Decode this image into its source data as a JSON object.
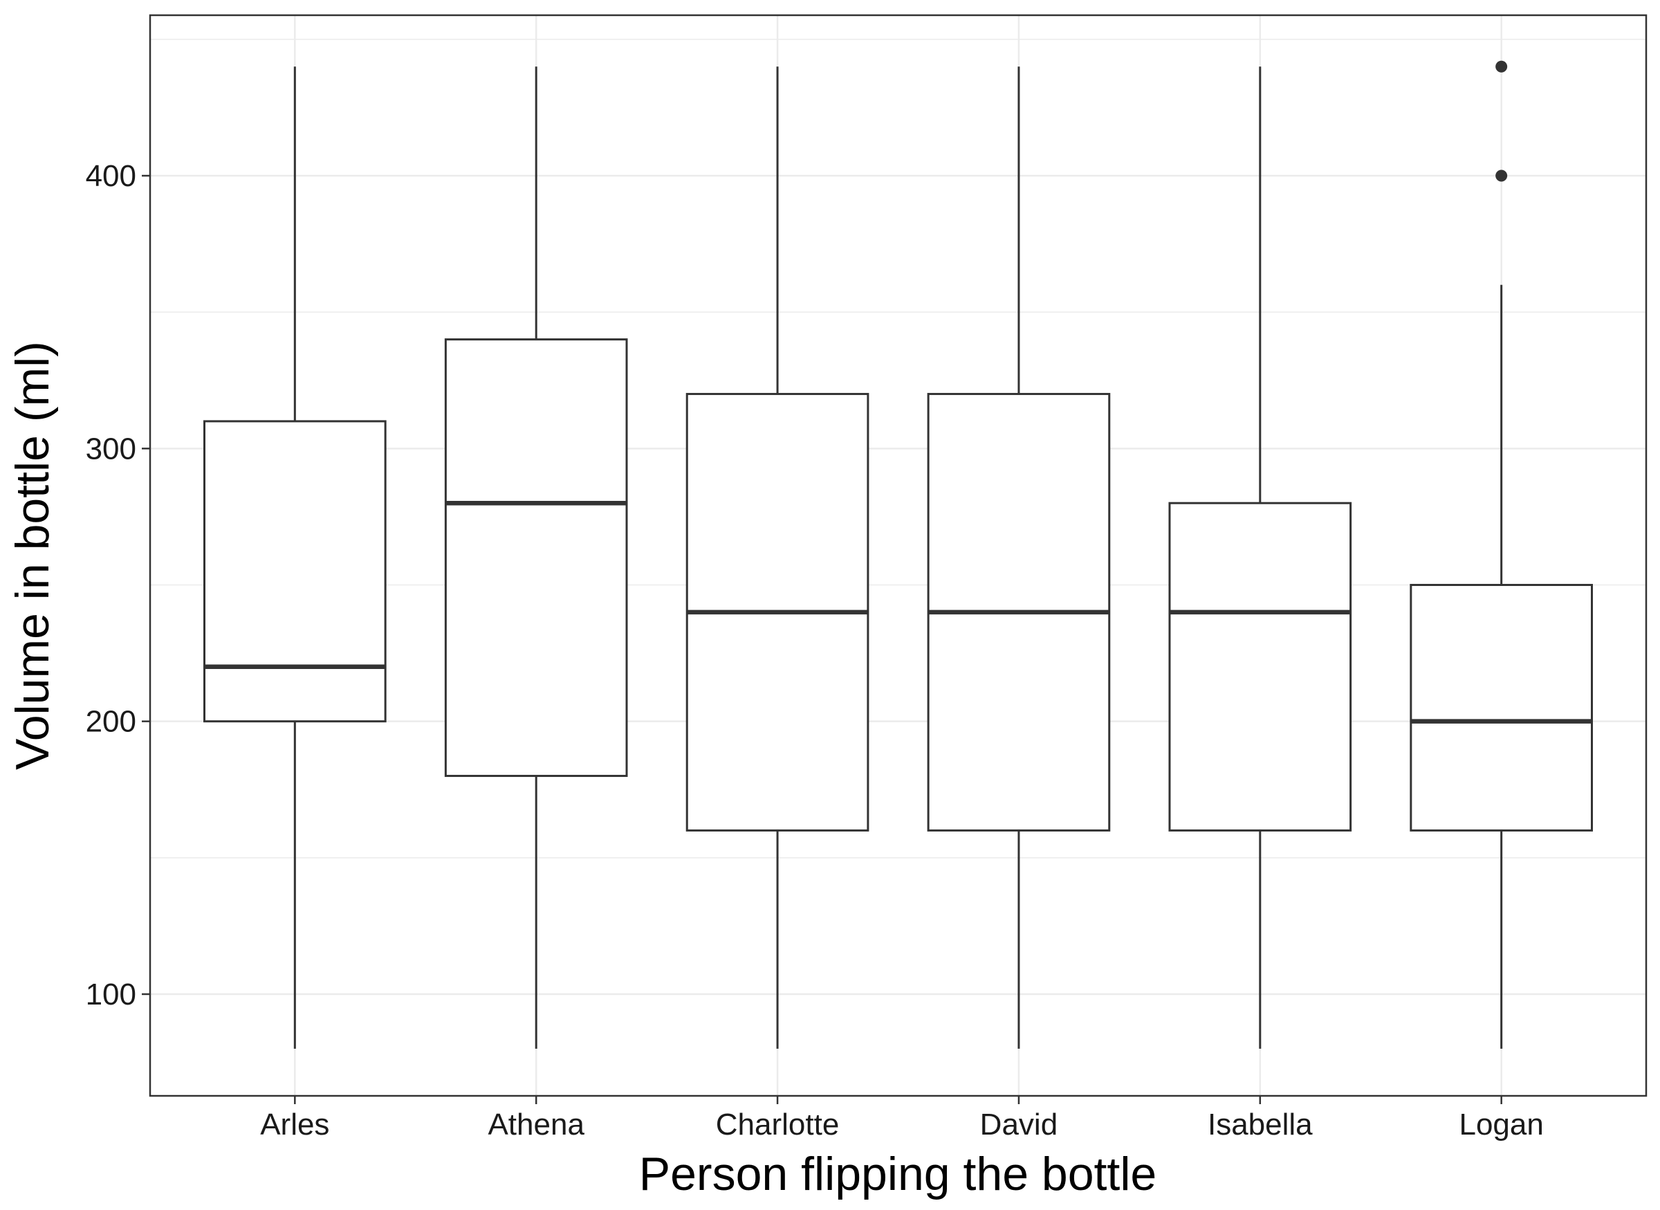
{
  "chart_data": {
    "type": "boxplot",
    "title": "",
    "xlabel": "Person flipping the bottle",
    "ylabel": "Volume in bottle (ml)",
    "ylim": [
      60,
      450
    ],
    "y_ticks": [
      100,
      200,
      300,
      400
    ],
    "y_minor_gridlines": [
      150,
      250,
      350,
      450
    ],
    "grid": true,
    "legend": "none",
    "categories": [
      "Arles",
      "Athena",
      "Charlotte",
      "David",
      "Isabella",
      "Logan"
    ],
    "boxes": [
      {
        "name": "Arles",
        "whisker_low": 80,
        "q1": 200,
        "median": 220,
        "q3": 310,
        "whisker_high": 440,
        "outliers": []
      },
      {
        "name": "Athena",
        "whisker_low": 80,
        "q1": 180,
        "median": 280,
        "q3": 340,
        "whisker_high": 440,
        "outliers": []
      },
      {
        "name": "Charlotte",
        "whisker_low": 80,
        "q1": 160,
        "median": 240,
        "q3": 320,
        "whisker_high": 440,
        "outliers": []
      },
      {
        "name": "David",
        "whisker_low": 80,
        "q1": 160,
        "median": 240,
        "q3": 320,
        "whisker_high": 440,
        "outliers": []
      },
      {
        "name": "Isabella",
        "whisker_low": 80,
        "q1": 160,
        "median": 240,
        "q3": 280,
        "whisker_high": 440,
        "outliers": []
      },
      {
        "name": "Logan",
        "whisker_low": 80,
        "q1": 160,
        "median": 200,
        "q3": 250,
        "whisker_high": 360,
        "outliers": [
          400,
          440
        ]
      }
    ],
    "colors": {
      "box_stroke": "#333333",
      "box_fill": "#ffffff",
      "grid": "#ebebeb",
      "panel_border": "#333333",
      "outlier": "#333333"
    }
  }
}
